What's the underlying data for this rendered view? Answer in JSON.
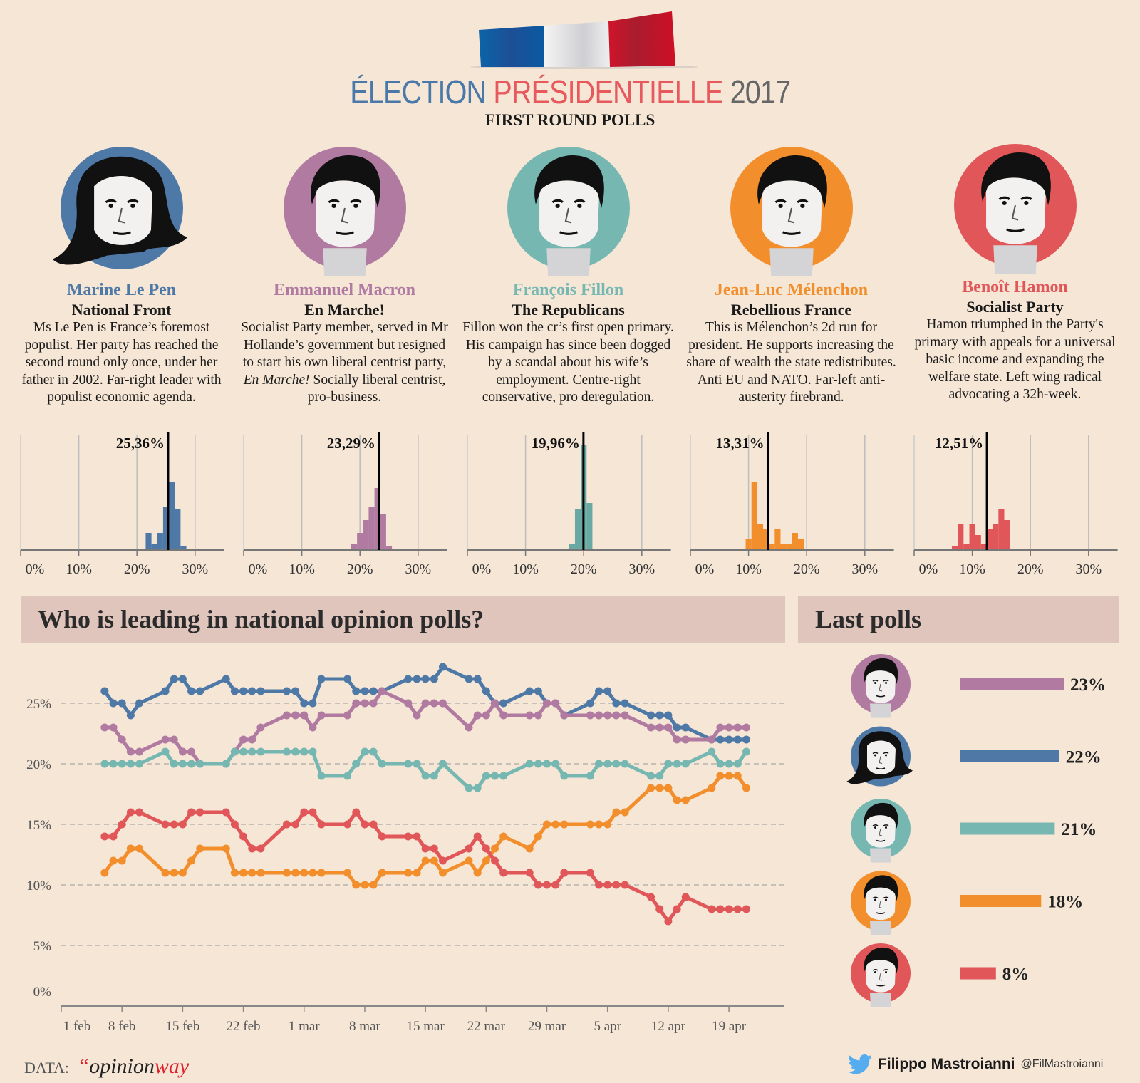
{
  "header": {
    "title_part1": "ÉLECTION",
    "title_part2": "PRÉSIDENTIELLE",
    "title_part3": "2017",
    "subtitle": "FIRST ROUND POLLS",
    "colors": {
      "part1": "#4a78a8",
      "part2": "#e8595e",
      "part3": "#666666"
    }
  },
  "candidates": [
    {
      "name": "Marine Le Pen",
      "party": "National Front",
      "color": "#4e79a7",
      "desc": "Ms Le Pen is France’s foremost populist. Her party has reached the second round only once, under her father in 2002. Far-right leader with populist economic agenda."
    },
    {
      "name": "Emmanuel Macron",
      "party": "En Marche!",
      "color": "#b07aa1",
      "desc_pre": "Socialist Party member, served in Mr Hollande’s government but resigned to start his own liberal centrist party, ",
      "desc_italic": "En Marche!",
      "desc_post": " Socially liberal centrist, pro-business."
    },
    {
      "name": "François Fillon",
      "party": "The Republicans",
      "color": "#76b7b2",
      "desc": "Fillon won the cr’s first open primary. His campaign has since been dogged by a scandal about his wife’s employment. Centre-right conservative, pro deregulation."
    },
    {
      "name": "Jean-Luc Mélenchon",
      "party": "Rebellious France",
      "color": "#f28e2b",
      "desc": "This is Mélenchon’s 2d run for president. He supports increasing the share of wealth the state redistributes. Anti EU and NATO. Far-left anti-austerity firebrand."
    },
    {
      "name": "Benoît Hamon",
      "party": "Socialist Party",
      "color": "#e15759",
      "desc": "Hamon triumphed in the Party's primary with appeals for a universal basic income and expanding the welfare state. Left wing radical advocating a 32h-week."
    }
  ],
  "sections": {
    "trend_title": "Who is leading in national opinion polls?",
    "last_title": "Last polls"
  },
  "chart_data": [
    {
      "type": "bar",
      "subtype": "histogram",
      "candidate": "Marine Le Pen",
      "color": "#4e79a7",
      "mean_label": "25,36%",
      "mean": 25.36,
      "bins": [
        22,
        23,
        24,
        25,
        26,
        27,
        28
      ],
      "values": [
        4,
        1.5,
        4,
        10,
        16,
        9.5,
        1
      ],
      "x_ticks": [
        "0%",
        "10%",
        "20%",
        "30%"
      ],
      "xlim": [
        0,
        35
      ],
      "ylim": [
        0,
        25
      ],
      "grid": true
    },
    {
      "type": "bar",
      "subtype": "histogram",
      "candidate": "Emmanuel Macron",
      "color": "#b07aa1",
      "mean_label": "23,29%",
      "mean": 23.29,
      "bins": [
        19,
        20,
        21,
        22,
        23,
        24,
        25
      ],
      "values": [
        1.5,
        4,
        7,
        10,
        14.5,
        8.5,
        1
      ],
      "x_ticks": [
        "0%",
        "10%",
        "20%",
        "30%"
      ],
      "xlim": [
        0,
        35
      ],
      "ylim": [
        0,
        25
      ],
      "grid": true
    },
    {
      "type": "bar",
      "subtype": "histogram",
      "candidate": "François Fillon",
      "color": "#6aa8a3",
      "mean_label": "19,96%",
      "mean": 19.96,
      "bins": [
        18,
        19,
        20,
        21
      ],
      "values": [
        1.5,
        9.5,
        24.5,
        11
      ],
      "x_ticks": [
        "0%",
        "10%",
        "20%",
        "30%"
      ],
      "xlim": [
        0,
        35
      ],
      "ylim": [
        0,
        25
      ],
      "grid": true
    },
    {
      "type": "bar",
      "subtype": "histogram",
      "candidate": "Jean-Luc Mélenchon",
      "color": "#f28e2b",
      "mean_label": "13,31%",
      "mean": 13.31,
      "bins": [
        10,
        11,
        12,
        13,
        14,
        15,
        16,
        17,
        18,
        19
      ],
      "values": [
        2.5,
        16,
        6,
        5,
        1.5,
        5,
        1.5,
        1.5,
        4,
        2.5
      ],
      "x_ticks": [
        "0%",
        "10%",
        "20%",
        "30%"
      ],
      "xlim": [
        0,
        35
      ],
      "ylim": [
        0,
        25
      ],
      "grid": true
    },
    {
      "type": "bar",
      "subtype": "histogram",
      "candidate": "Benoît Hamon",
      "color": "#e15759",
      "mean_label": "12,51%",
      "mean": 12.51,
      "bins": [
        7,
        8,
        9,
        10,
        11,
        12,
        13,
        14,
        15,
        16
      ],
      "values": [
        1,
        6,
        1.5,
        6,
        3.5,
        1.5,
        5,
        6,
        9.5,
        7
      ],
      "x_ticks": [
        "0%",
        "10%",
        "20%",
        "30%"
      ],
      "xlim": [
        0,
        35
      ],
      "ylim": [
        0,
        25
      ],
      "grid": true
    },
    {
      "type": "line",
      "title": "Who is leading in national opinion polls?",
      "x": [
        "2017-02-06",
        "2017-02-07",
        "2017-02-08",
        "2017-02-09",
        "2017-02-10",
        "2017-02-13",
        "2017-02-14",
        "2017-02-15",
        "2017-02-16",
        "2017-02-17",
        "2017-02-20",
        "2017-02-21",
        "2017-02-22",
        "2017-02-23",
        "2017-02-24",
        "2017-02-27",
        "2017-02-28",
        "2017-03-01",
        "2017-03-02",
        "2017-03-03",
        "2017-03-06",
        "2017-03-07",
        "2017-03-08",
        "2017-03-09",
        "2017-03-10",
        "2017-03-13",
        "2017-03-14",
        "2017-03-15",
        "2017-03-16",
        "2017-03-17",
        "2017-03-20",
        "2017-03-21",
        "2017-03-22",
        "2017-03-23",
        "2017-03-24",
        "2017-03-27",
        "2017-03-28",
        "2017-03-29",
        "2017-03-30",
        "2017-03-31",
        "2017-04-03",
        "2017-04-04",
        "2017-04-05",
        "2017-04-06",
        "2017-04-07",
        "2017-04-10",
        "2017-04-11",
        "2017-04-12",
        "2017-04-13",
        "2017-04-14",
        "2017-04-17",
        "2017-04-18",
        "2017-04-19",
        "2017-04-20",
        "2017-04-21"
      ],
      "series": [
        {
          "candidate": "Marine Le Pen",
          "color": "#4e79a7",
          "values": [
            26,
            25,
            25,
            24,
            25,
            26,
            27,
            27,
            26,
            26,
            27,
            26,
            26,
            26,
            26,
            26,
            26,
            25,
            25,
            27,
            27,
            26,
            26,
            26,
            26,
            27,
            27,
            27,
            27,
            28,
            27,
            27,
            26,
            25,
            25,
            26,
            26,
            25,
            25,
            24,
            25,
            26,
            26,
            25,
            25,
            24,
            24,
            24,
            23,
            23,
            22,
            22,
            22,
            22,
            22
          ]
        },
        {
          "candidate": "Emmanuel Macron",
          "color": "#b07aa1",
          "values": [
            23,
            23,
            22,
            21,
            21,
            22,
            22,
            21,
            21,
            20,
            20,
            21,
            22,
            22,
            23,
            24,
            24,
            24,
            23,
            24,
            24,
            25,
            25,
            25,
            26,
            25,
            24,
            25,
            25,
            25,
            23,
            24,
            24,
            25,
            24,
            24,
            24,
            25,
            25,
            24,
            24,
            24,
            24,
            24,
            24,
            23,
            23,
            23,
            22,
            22,
            22,
            23,
            23,
            23,
            23
          ]
        },
        {
          "candidate": "François Fillon",
          "color": "#76b7b2",
          "values": [
            20,
            20,
            20,
            20,
            20,
            21,
            20,
            20,
            20,
            20,
            20,
            21,
            21,
            21,
            21,
            21,
            21,
            21,
            21,
            19,
            19,
            20,
            21,
            21,
            20,
            20,
            20,
            19,
            19,
            20,
            18,
            18,
            19,
            19,
            19,
            20,
            20,
            20,
            20,
            19,
            19,
            20,
            20,
            20,
            20,
            19,
            19,
            20,
            20,
            20,
            21,
            20,
            20,
            20,
            21
          ]
        },
        {
          "candidate": "Jean-Luc Mélenchon",
          "color": "#f28e2b",
          "values": [
            11,
            12,
            12,
            13,
            13,
            11,
            11,
            11,
            12,
            13,
            13,
            11,
            11,
            11,
            11,
            11,
            11,
            11,
            11,
            11,
            11,
            10,
            10,
            10,
            11,
            11,
            11,
            12,
            12,
            11,
            12,
            11,
            12,
            13,
            14,
            13,
            14,
            15,
            15,
            15,
            15,
            15,
            15,
            16,
            16,
            18,
            18,
            18,
            17,
            17,
            18,
            19,
            19,
            19,
            18
          ]
        },
        {
          "candidate": "Benoît Hamon",
          "color": "#e15759",
          "values": [
            14,
            14,
            15,
            16,
            16,
            15,
            15,
            15,
            16,
            16,
            16,
            15,
            14,
            13,
            13,
            15,
            15,
            16,
            16,
            15,
            15,
            16,
            15,
            15,
            14,
            14,
            14,
            13,
            13,
            12,
            13,
            14,
            13,
            12,
            11,
            11,
            10,
            10,
            10,
            11,
            11,
            10,
            10,
            10,
            10,
            9,
            8,
            7,
            8,
            9,
            8,
            8,
            8,
            8,
            8
          ]
        }
      ],
      "y_ticks": [
        "0%",
        "5%",
        "10%",
        "15%",
        "20%",
        "25%"
      ],
      "x_tick_dates": [
        "2017-02-01",
        "2017-02-08",
        "2017-02-15",
        "2017-02-22",
        "2017-03-01",
        "2017-03-08",
        "2017-03-15",
        "2017-03-22",
        "2017-03-29",
        "2017-04-05",
        "2017-04-12",
        "2017-04-19"
      ],
      "x_tick_labels": [
        "1 feb",
        "8 feb",
        "15 feb",
        "22 feb",
        "1 mar",
        "8 mar",
        "15 mar",
        "22 mar",
        "29 mar",
        "5 apr",
        "12 apr",
        "19 apr"
      ],
      "xlim": [
        "2017-02-01",
        "2017-04-25"
      ],
      "ylim": [
        0,
        28
      ],
      "grid": "horizontal dashed"
    },
    {
      "type": "bar",
      "orientation": "horizontal",
      "title": "Last polls",
      "categories": [
        "Emmanuel Macron",
        "Marine Le Pen",
        "François Fillon",
        "Jean-Luc Mélenchon",
        "Benoît Hamon"
      ],
      "values": [
        23,
        22,
        21,
        18,
        8
      ],
      "labels": [
        "23%",
        "22%",
        "21%",
        "18%",
        "8%"
      ],
      "colors": [
        "#b07aa1",
        "#4e79a7",
        "#76b7b2",
        "#f28e2b",
        "#e15759"
      ]
    }
  ],
  "footer": {
    "data_label": "DATA:",
    "source_quote": "“",
    "source_part1": "opinion",
    "source_part2": "way",
    "author": "Filippo Mastroianni",
    "handle": "@FilMastroianni",
    "twitter_color": "#55acee"
  }
}
